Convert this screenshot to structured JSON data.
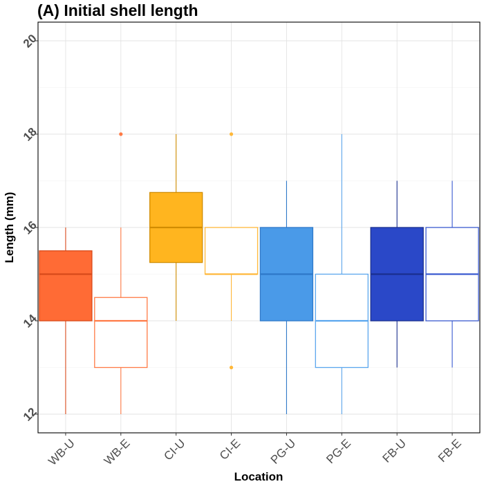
{
  "chart_data": {
    "type": "box",
    "title": "(A) Initial shell length",
    "xlabel": "Location",
    "ylabel": "Length (mm)",
    "ylim": [
      11.6,
      20.4
    ],
    "yticks": [
      12,
      14,
      16,
      18,
      20
    ],
    "grid": true,
    "legend": "none",
    "categories": [
      "WB-U",
      "WB-E",
      "CI-U",
      "CI-E",
      "PG-U",
      "PG-E",
      "FB-U",
      "FB-E"
    ],
    "boxes": [
      {
        "category": "WB-U",
        "min": 12,
        "q1": 14,
        "median": 15,
        "q3": 15.5,
        "max": 16,
        "outliers": [],
        "filled": true,
        "fill": "#FF6B35",
        "line": "#D84A1B"
      },
      {
        "category": "WB-E",
        "min": 12,
        "q1": 13,
        "median": 14,
        "q3": 14.5,
        "max": 16,
        "outliers": [
          18
        ],
        "filled": false,
        "fill": "#FFFFFF",
        "line": "#FF7A45"
      },
      {
        "category": "CI-U",
        "min": 14,
        "q1": 15.25,
        "median": 16,
        "q3": 16.75,
        "max": 18,
        "outliers": [],
        "filled": true,
        "fill": "#FFB51F",
        "line": "#D18C00"
      },
      {
        "category": "CI-E",
        "min": 14,
        "q1": 15,
        "median": 15,
        "q3": 16,
        "max": 16,
        "outliers": [
          18,
          13
        ],
        "filled": false,
        "fill": "#FFFFFF",
        "line": "#FFB83A"
      },
      {
        "category": "PG-U",
        "min": 12,
        "q1": 14,
        "median": 15,
        "q3": 16,
        "max": 17,
        "outliers": [],
        "filled": true,
        "fill": "#4A9AE8",
        "line": "#2E78C8"
      },
      {
        "category": "PG-E",
        "min": 12,
        "q1": 13,
        "median": 14,
        "q3": 15,
        "max": 18,
        "outliers": [],
        "filled": false,
        "fill": "#FFFFFF",
        "line": "#5AA6EE"
      },
      {
        "category": "FB-U",
        "min": 13,
        "q1": 14,
        "median": 15,
        "q3": 16,
        "max": 17,
        "outliers": [],
        "filled": true,
        "fill": "#2A48C8",
        "line": "#1A2F8F"
      },
      {
        "category": "FB-E",
        "min": 13,
        "q1": 14,
        "median": 15,
        "q3": 16,
        "max": 17,
        "outliers": [],
        "filled": false,
        "fill": "#FFFFFF",
        "line": "#3A5AD0"
      }
    ]
  }
}
